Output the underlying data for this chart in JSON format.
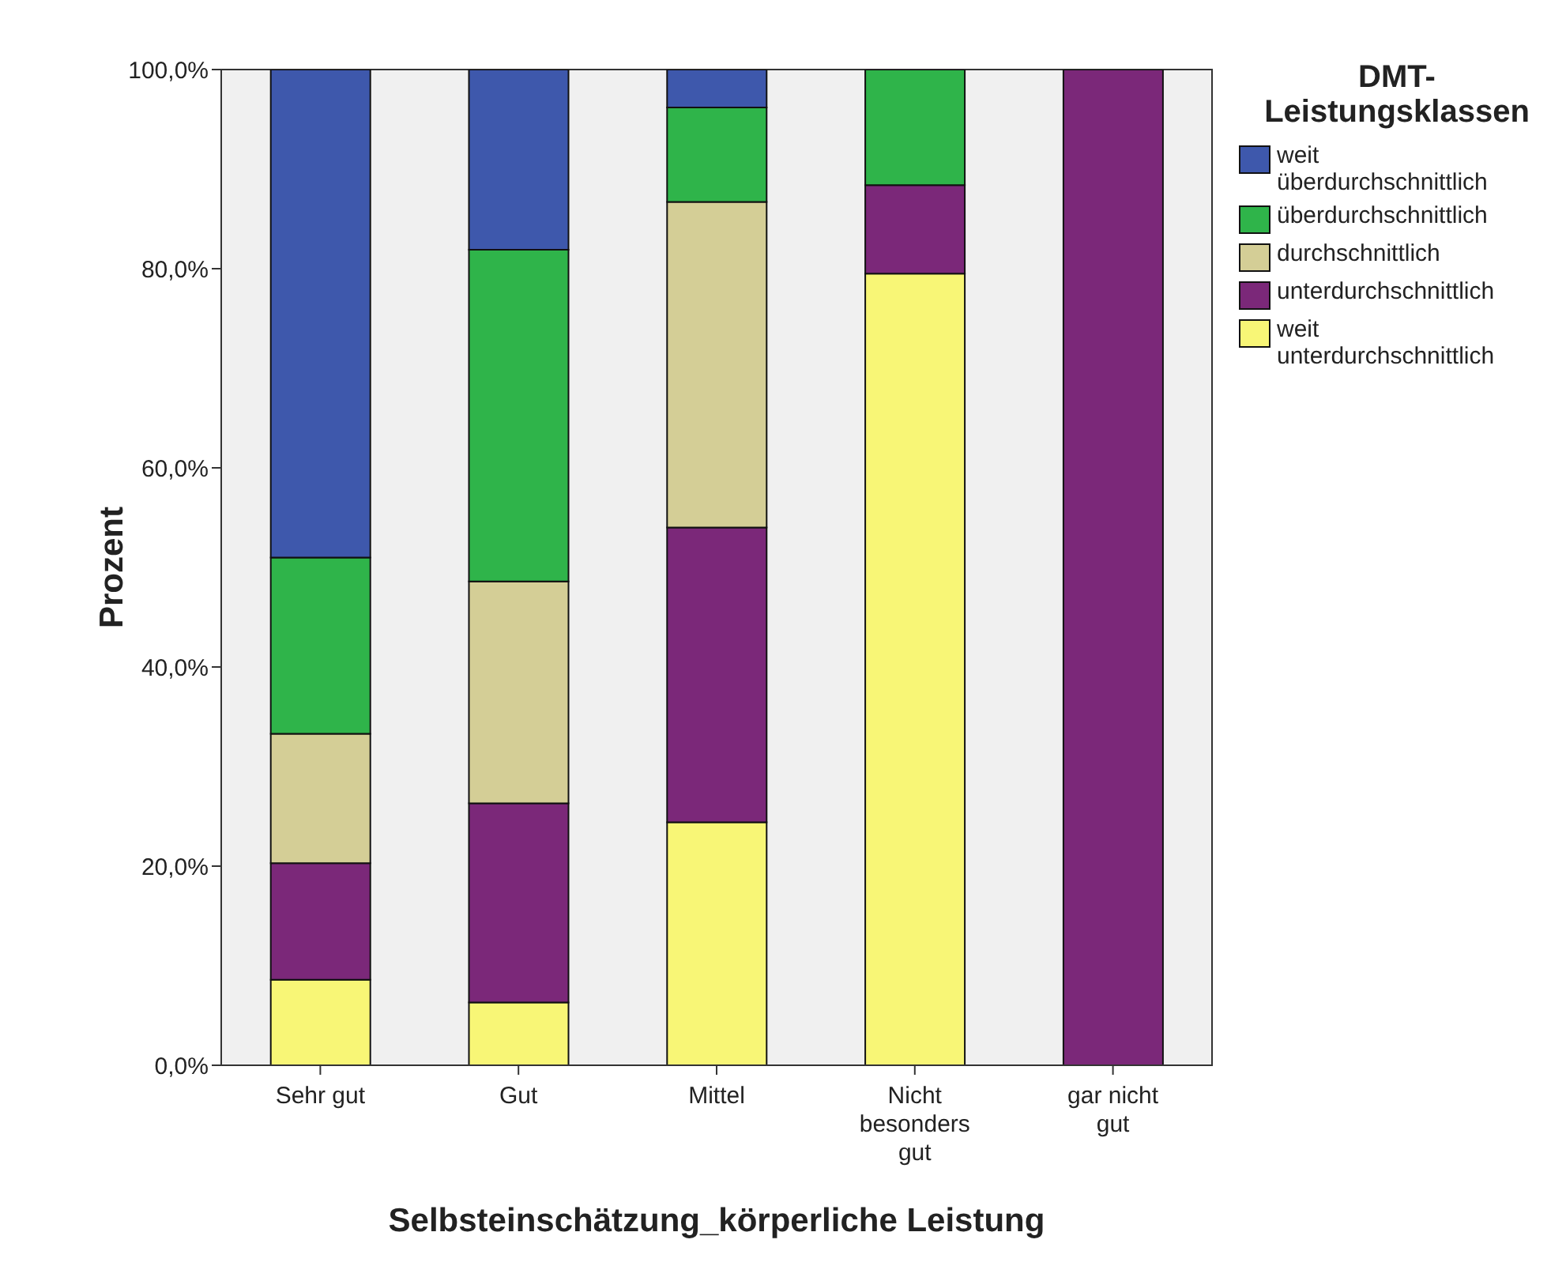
{
  "chart_data": {
    "type": "bar",
    "stacked": true,
    "xlabel": "Selbsteinschätzung_körperliche Leistung",
    "ylabel": "Prozent",
    "legend_title": "DMT-Leistungsklassen",
    "categories": [
      "Sehr gut",
      "Gut",
      "Mittel",
      "Nicht besonders gut",
      "gar nicht gut"
    ],
    "series": [
      {
        "name": "weit unterdurchschnittlich",
        "color": "#f8f676",
        "values": [
          8.6,
          6.3,
          24.4,
          79.5,
          0
        ]
      },
      {
        "name": "unterdurchschnittlich",
        "color": "#7b2879",
        "values": [
          11.7,
          20.0,
          29.6,
          8.9,
          100
        ]
      },
      {
        "name": "durchschnittlich",
        "color": "#d4ce96",
        "values": [
          13.0,
          22.3,
          32.7,
          0,
          0
        ]
      },
      {
        "name": "überdurchschnittlich",
        "color": "#2fb44a",
        "values": [
          17.7,
          33.3,
          9.5,
          11.6,
          0
        ]
      },
      {
        "name": "weit überdurchschnittlich",
        "color": "#3e58ac",
        "values": [
          49.0,
          18.1,
          3.8,
          0,
          0
        ]
      }
    ],
    "ylim": [
      0,
      100
    ],
    "yticks": [
      {
        "value": 0,
        "label": "0,0%"
      },
      {
        "value": 20,
        "label": "20,0%"
      },
      {
        "value": 40,
        "label": "40,0%"
      },
      {
        "value": 60,
        "label": "60,0%"
      },
      {
        "value": 80,
        "label": "80,0%"
      },
      {
        "value": 100,
        "label": "100,0%"
      }
    ],
    "grid": false,
    "legend": "top right"
  }
}
